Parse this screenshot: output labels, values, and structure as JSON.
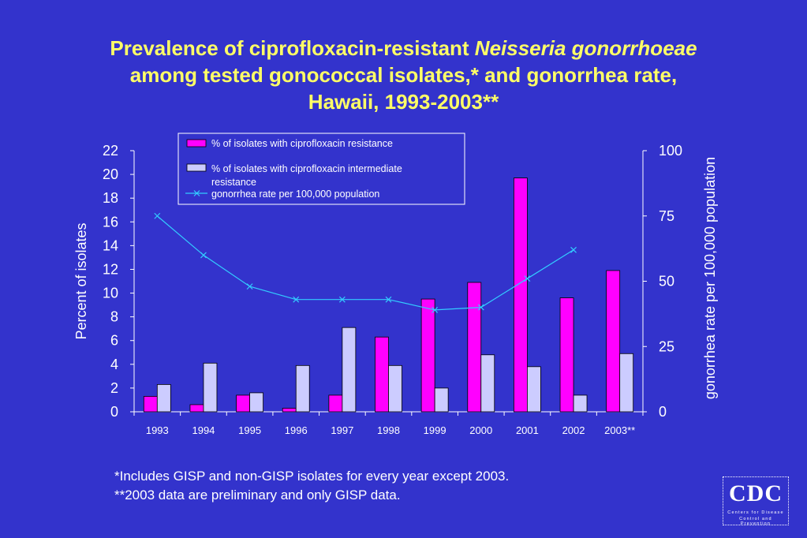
{
  "title": {
    "line1_pre": "Prevalence of ciprofloxacin-resistant ",
    "line1_italic": "Neisseria gonorrhoeae",
    "line2": "among tested gonococcal isolates,* and gonorrhea rate,",
    "line3": "Hawaii, 1993-2003**"
  },
  "footnotes": [
    "*Includes GISP and non-GISP isolates for every year except 2003.",
    "**2003 data are preliminary and only GISP data."
  ],
  "logo": {
    "text": "CDC",
    "line1": "Centers for Disease",
    "line2": "Control and Prevention"
  },
  "colors": {
    "background": "#3333cc",
    "title": "#ffff66",
    "resistant_bar": "#ff00ff",
    "intermediate_bar": "#ccccff",
    "rate_line": "#33ccff"
  },
  "chart_data": {
    "type": "bar",
    "categories": [
      "1993",
      "1994",
      "1995",
      "1996",
      "1997",
      "1998",
      "1999",
      "2000",
      "2001",
      "2002",
      "2003**"
    ],
    "series": [
      {
        "name": "% of isolates with ciprofloxacin resistance",
        "kind": "bar",
        "axis": "left",
        "values": [
          1.3,
          0.6,
          1.4,
          0.3,
          1.4,
          6.3,
          9.5,
          10.9,
          19.7,
          9.6,
          11.9
        ]
      },
      {
        "name": "% of isolates with ciprofloxacin intermediate resistance",
        "kind": "bar",
        "axis": "left",
        "values": [
          2.3,
          4.1,
          1.6,
          3.9,
          7.1,
          3.9,
          2.0,
          4.8,
          3.8,
          1.4,
          4.9
        ]
      },
      {
        "name": "gonorrhea rate per 100,000 population",
        "kind": "line",
        "axis": "right",
        "values": [
          75,
          60,
          48,
          43,
          43,
          43,
          39,
          40,
          51,
          62,
          null
        ]
      }
    ],
    "ylabel": "Percent of isolates",
    "y2label": "gonorrhea rate per 100,000 population",
    "ylim": [
      0,
      22
    ],
    "yticks": [
      "0",
      "2",
      "4",
      "6",
      "8",
      "10",
      "12",
      "14",
      "16",
      "18",
      "20",
      "22"
    ],
    "y2lim": [
      0,
      100
    ],
    "y2ticks": [
      "0",
      "25",
      "50",
      "75",
      "100"
    ],
    "legend_position": "top-center",
    "grid": false
  }
}
